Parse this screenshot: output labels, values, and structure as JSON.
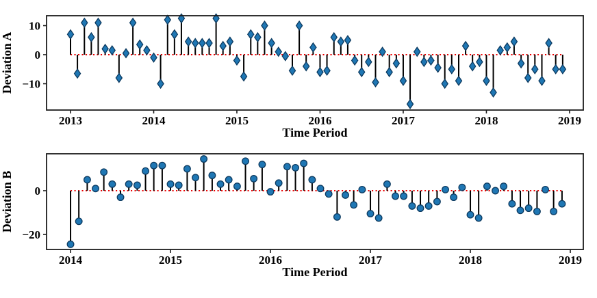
{
  "figure": {
    "kind": "matplotlib-style stem plots, 2 stacked subplots",
    "colors": {
      "marker_fill": "#1f77b4",
      "marker_edge": "#0d3a5f",
      "stem": "#000000",
      "baseline": "#ec0000",
      "spine": "#1c1c1c",
      "background": "#ffffff"
    }
  },
  "chart_data": [
    {
      "type": "stem",
      "title": "",
      "xlabel": "Time Period",
      "ylabel": "Deviation A",
      "marker": "thin-diamond",
      "legend": "none",
      "grid": false,
      "baseline_value": 0,
      "xlim": [
        2012.712,
        2019.165
      ],
      "ylim": [
        -19.06,
        13.41
      ],
      "x_ticks": [
        {
          "value": 2013,
          "label": "2013"
        },
        {
          "value": 2014,
          "label": "2014"
        },
        {
          "value": 2015,
          "label": "2015"
        },
        {
          "value": 2016,
          "label": "2016"
        },
        {
          "value": 2017,
          "label": "2017"
        },
        {
          "value": 2018,
          "label": "2018"
        },
        {
          "value": 2019,
          "label": "2019"
        }
      ],
      "y_ticks": [
        {
          "value": 10,
          "label": "10"
        },
        {
          "value": 0,
          "label": "0"
        },
        {
          "value": -10,
          "label": "−10"
        }
      ],
      "x": [
        2013.0,
        2013.083,
        2013.167,
        2013.25,
        2013.333,
        2013.417,
        2013.5,
        2013.583,
        2013.667,
        2013.75,
        2013.833,
        2013.917,
        2014.0,
        2014.083,
        2014.167,
        2014.25,
        2014.333,
        2014.417,
        2014.5,
        2014.583,
        2014.667,
        2014.75,
        2014.833,
        2014.917,
        2015.0,
        2015.083,
        2015.167,
        2015.25,
        2015.333,
        2015.417,
        2015.5,
        2015.583,
        2015.667,
        2015.75,
        2015.833,
        2015.917,
        2016.0,
        2016.083,
        2016.167,
        2016.25,
        2016.333,
        2016.417,
        2016.5,
        2016.583,
        2016.667,
        2016.75,
        2016.833,
        2016.917,
        2017.0,
        2017.083,
        2017.167,
        2017.25,
        2017.333,
        2017.417,
        2017.5,
        2017.583,
        2017.667,
        2017.75,
        2017.833,
        2017.917,
        2018.0,
        2018.083,
        2018.167,
        2018.25,
        2018.333,
        2018.417,
        2018.5,
        2018.583,
        2018.667,
        2018.75,
        2018.833,
        2018.917
      ],
      "y": [
        7,
        -6.5,
        11,
        6,
        11,
        2,
        1.5,
        -8,
        0.5,
        11,
        3.5,
        1.5,
        -1,
        -10,
        12,
        7,
        12.5,
        4.5,
        4,
        4,
        4,
        12.5,
        3,
        4.5,
        -2,
        -7.5,
        7,
        6,
        10,
        4,
        1,
        -0.5,
        -5.5,
        10,
        -4,
        2.5,
        -6,
        -5.5,
        6,
        4.5,
        5,
        -2,
        -6,
        -2.5,
        -9.5,
        1,
        -6,
        -3,
        -9,
        -17,
        1,
        -2.5,
        -2,
        -4.5,
        -10,
        -5,
        -9,
        3,
        -4,
        -2.5,
        -9,
        -13,
        1.5,
        2.5,
        4.5,
        -3,
        -8,
        -5,
        -9,
        4,
        -5,
        -5
      ]
    },
    {
      "type": "stem",
      "title": "",
      "xlabel": "Time Period",
      "ylabel": "Deviation B",
      "marker": "circle",
      "legend": "none",
      "grid": false,
      "baseline_value": 0,
      "xlim": [
        2013.76,
        2019.13
      ],
      "ylim": [
        -26.88,
        16.88
      ],
      "x_ticks": [
        {
          "value": 2014,
          "label": "2014"
        },
        {
          "value": 2015,
          "label": "2015"
        },
        {
          "value": 2016,
          "label": "2016"
        },
        {
          "value": 2017,
          "label": "2017"
        },
        {
          "value": 2018,
          "label": "2018"
        },
        {
          "value": 2019,
          "label": "2019"
        }
      ],
      "y_ticks": [
        {
          "value": 0,
          "label": "0"
        },
        {
          "value": -20,
          "label": "−20"
        }
      ],
      "x": [
        2014.0,
        2014.083,
        2014.167,
        2014.25,
        2014.333,
        2014.417,
        2014.5,
        2014.583,
        2014.667,
        2014.75,
        2014.833,
        2014.917,
        2015.0,
        2015.083,
        2015.167,
        2015.25,
        2015.333,
        2015.417,
        2015.5,
        2015.583,
        2015.667,
        2015.75,
        2015.833,
        2015.917,
        2016.0,
        2016.083,
        2016.167,
        2016.25,
        2016.333,
        2016.417,
        2016.5,
        2016.583,
        2016.667,
        2016.75,
        2016.833,
        2016.917,
        2017.0,
        2017.083,
        2017.167,
        2017.25,
        2017.333,
        2017.417,
        2017.5,
        2017.583,
        2017.667,
        2017.75,
        2017.833,
        2017.917,
        2018.0,
        2018.083,
        2018.167,
        2018.25,
        2018.333,
        2018.417,
        2018.5,
        2018.583,
        2018.667,
        2018.75,
        2018.833,
        2018.917
      ],
      "y": [
        -24.5,
        -14,
        5,
        1,
        8.5,
        3,
        -3,
        3,
        2.5,
        9,
        11.5,
        11.5,
        3,
        2.5,
        10,
        6,
        14.5,
        7,
        3,
        5,
        2,
        13.5,
        5.5,
        12,
        -0.5,
        3.5,
        11,
        10.5,
        12.5,
        5,
        1,
        -1.5,
        -12,
        -2,
        -6.5,
        0.5,
        -10.5,
        -12.5,
        3,
        -2.5,
        -2.5,
        -7,
        -8,
        -7,
        -5,
        0.5,
        -3,
        1.5,
        -11,
        -12.5,
        2,
        0,
        2,
        -6,
        -9,
        -8,
        -9.5,
        0.5,
        -9.5,
        -6
      ]
    }
  ]
}
